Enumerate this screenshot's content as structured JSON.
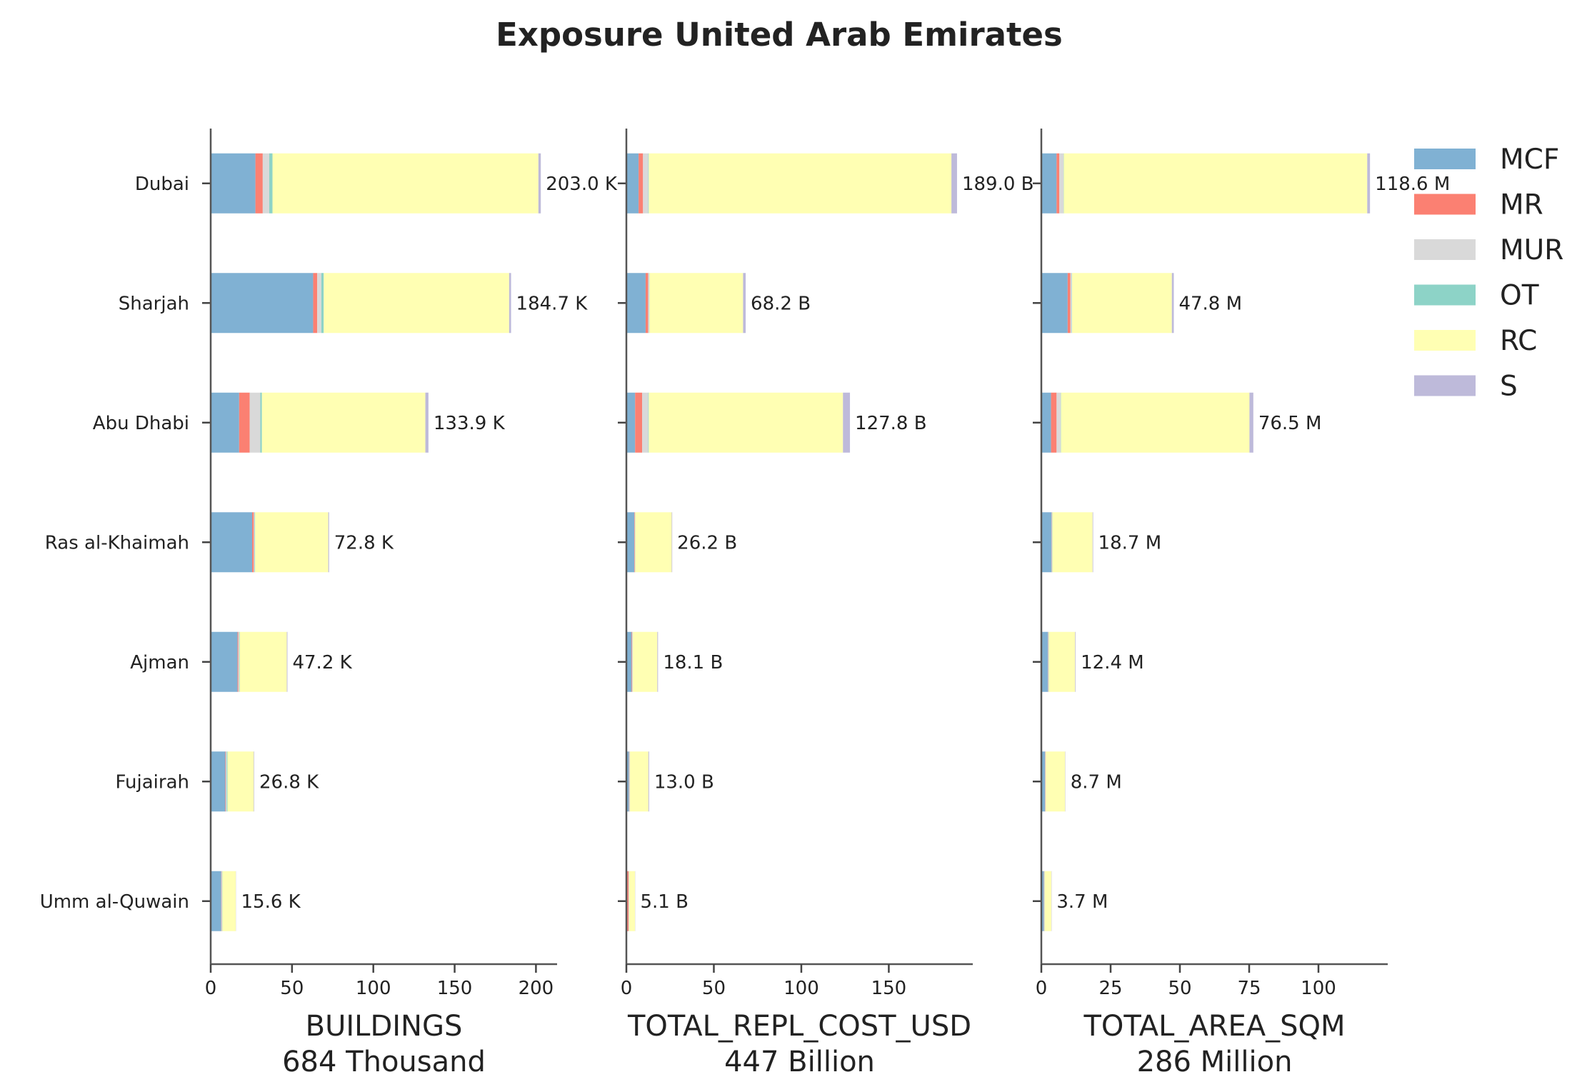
{
  "chart_data": {
    "type": "bar",
    "orientation": "horizontal",
    "stacked": true,
    "title": "Exposure United Arab Emirates",
    "categories": [
      "Dubai",
      "Sharjah",
      "Abu Dhabi",
      "Ras al-Khaimah",
      "Ajman",
      "Fujairah",
      "Umm al-Quwain"
    ],
    "legend": {
      "position": "top-right",
      "entries": [
        {
          "name": "MCF",
          "color": "#80b1d3"
        },
        {
          "name": "MR",
          "color": "#fb8072"
        },
        {
          "name": "MUR",
          "color": "#d9d9d9"
        },
        {
          "name": "OT",
          "color": "#8dd3c7"
        },
        {
          "name": "RC",
          "color": "#ffffb3"
        },
        {
          "name": "S",
          "color": "#bebada"
        }
      ]
    },
    "panels": [
      {
        "xlabel": "BUILDINGS",
        "total_label": "684 Thousand",
        "xlim": [
          0,
          213
        ],
        "ticks": [
          0,
          50,
          100,
          150,
          200
        ],
        "tick_labels": [
          "0",
          "50",
          "100",
          "150",
          "200"
        ],
        "segments": {
          "MCF": [
            27.5,
            63.0,
            17.5,
            25.5,
            16.5,
            9.0,
            6.5
          ],
          "MR": [
            4.5,
            2.5,
            6.5,
            1.0,
            0.5,
            0.3,
            0.2
          ],
          "MUR": [
            4.0,
            2.5,
            6.5,
            0.5,
            0.5,
            0.5,
            0.3
          ],
          "OT": [
            2.0,
            1.5,
            1.0,
            0.3,
            0.3,
            0.5,
            0.2
          ],
          "RC": [
            163.5,
            114.0,
            100.5,
            45.0,
            29.0,
            16.2,
            8.3
          ],
          "S": [
            1.5,
            1.2,
            1.9,
            0.5,
            0.4,
            0.3,
            0.1
          ]
        },
        "data_labels": [
          "203.0 K",
          "184.7 K",
          "133.9 K",
          "72.8 K",
          "47.2 K",
          "26.8 K",
          "15.6 K"
        ]
      },
      {
        "xlabel": "TOTAL_REPL_COST_USD",
        "total_label": "447 Billion",
        "xlim": [
          0,
          198
        ],
        "ticks": [
          0,
          50,
          100,
          150
        ],
        "tick_labels": [
          "0",
          "50",
          "100",
          "150"
        ],
        "segments": {
          "MCF": [
            7.0,
            11.0,
            5.0,
            4.5,
            3.0,
            1.5,
            0.5
          ],
          "MR": [
            2.5,
            1.5,
            4.0,
            0.3,
            0.3,
            0.2,
            0.8
          ],
          "MUR": [
            3.0,
            0.5,
            3.5,
            0.2,
            0.3,
            0.2,
            0.2
          ],
          "OT": [
            0.3,
            0.2,
            0.3,
            0.1,
            0.1,
            0.1,
            0.1
          ],
          "RC": [
            173.0,
            53.5,
            111.0,
            20.8,
            14.0,
            10.6,
            3.4
          ],
          "S": [
            3.2,
            1.5,
            4.0,
            0.3,
            0.4,
            0.4,
            0.1
          ]
        },
        "data_labels": [
          "189.0 B",
          "68.2 B",
          "127.8 B",
          "26.2 B",
          "18.1 B",
          "13.0 B",
          "5.1 B"
        ]
      },
      {
        "xlabel": "TOTAL_AREA_SQM",
        "total_label": "286 Million",
        "xlim": [
          0,
          125
        ],
        "ticks": [
          0,
          25,
          50,
          75,
          100
        ],
        "tick_labels": [
          "0",
          "25",
          "50",
          "75",
          "100"
        ],
        "segments": {
          "MCF": [
            5.5,
            9.5,
            3.5,
            3.7,
            2.4,
            1.3,
            0.9
          ],
          "MR": [
            1.0,
            1.0,
            2.0,
            0.1,
            0.1,
            0.1,
            0.1
          ],
          "MUR": [
            1.5,
            0.5,
            1.5,
            0.1,
            0.1,
            0.1,
            0.1
          ],
          "OT": [
            0.1,
            0.1,
            0.1,
            0.1,
            0.1,
            0.1,
            0.1
          ],
          "RC": [
            109.5,
            36.0,
            68.0,
            14.5,
            9.5,
            7.0,
            2.4
          ],
          "S": [
            1.0,
            0.7,
            1.4,
            0.2,
            0.2,
            0.1,
            0.1
          ]
        },
        "data_labels": [
          "118.6 M",
          "47.8 M",
          "76.5 M",
          "18.7 M",
          "12.4 M",
          "8.7 M",
          "3.7 M"
        ]
      }
    ]
  }
}
